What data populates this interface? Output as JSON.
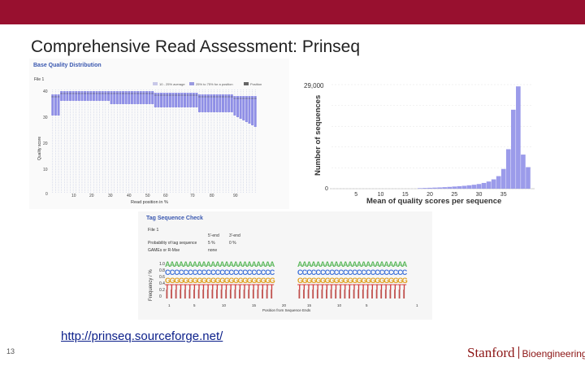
{
  "slide": {
    "title": "Comprehensive Read Assessment: Prinseq",
    "link": "http://prinseq.sourceforge.net/",
    "number": "13",
    "logo_main": "Stanford",
    "logo_dept": "Bioengineering",
    "accent_color": "#98102f"
  },
  "quality_chart": {
    "title": "Base Quality Distribution",
    "file_label": "File 1",
    "legend": [
      "10 - 25% average",
      "25% to 75% for a position",
      "Position"
    ],
    "y_ticks": [
      "40",
      "30",
      "20",
      "10",
      "0"
    ],
    "x_ticks": [
      "10",
      "20",
      "30",
      "40",
      "50",
      "60",
      "70",
      "80",
      "90"
    ],
    "xlabel": "Read position in %",
    "ylabel": "Quality score"
  },
  "histogram": {
    "chart_data": {
      "type": "bar",
      "xlabel": "Mean of quality scores per sequence",
      "ylabel": "Number of sequences",
      "y_max_label": "29,000",
      "y_min_label": "0",
      "x_ticks": [
        "5",
        "10",
        "15",
        "20",
        "25",
        "30",
        "35"
      ],
      "xlim": [
        0,
        41
      ],
      "ylim": [
        0,
        29000
      ],
      "x": [
        18,
        19,
        20,
        21,
        22,
        23,
        24,
        25,
        26,
        27,
        28,
        29,
        30,
        31,
        32,
        33,
        34,
        35,
        36,
        37,
        38,
        39,
        40
      ],
      "values": [
        150,
        200,
        250,
        300,
        350,
        420,
        500,
        600,
        700,
        800,
        950,
        1100,
        1300,
        1600,
        2000,
        2600,
        3500,
        5500,
        11000,
        22000,
        28500,
        9500,
        6000
      ]
    }
  },
  "tag_check": {
    "title": "Tag Sequence Check",
    "file_label": "File 1",
    "col_headers": [
      "5'-end",
      "3'-end"
    ],
    "rows": [
      {
        "label": "Probability of tag sequence",
        "v5": "5 %",
        "v3": "0 %"
      },
      {
        "label": "GAMEs or R-Mse",
        "v5": "none",
        "v3": ""
      }
    ],
    "ylabel": "Frequency / %",
    "y_ticks": [
      "1.0",
      "0.8",
      "0.6",
      "0.4",
      "0.2",
      "0"
    ],
    "x_ticks": [
      "1",
      "5",
      "10",
      "15",
      "20",
      "15",
      "10",
      "5",
      "1"
    ],
    "xlabel": "Position from Sequence Ends"
  }
}
